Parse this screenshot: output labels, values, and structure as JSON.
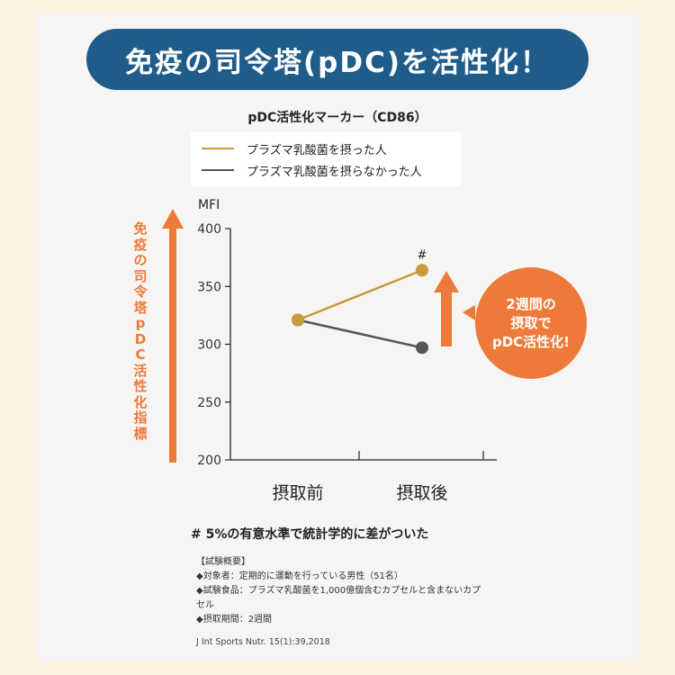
{
  "banner": {
    "title": "免疫の司令塔(pDC)を活性化！"
  },
  "chart_data": {
    "type": "line",
    "title": "pDC活性化マーカー（CD86）",
    "ylabel": "MFI",
    "ylim": [
      200,
      400
    ],
    "yticks": [
      "400",
      "350",
      "300",
      "250",
      "200"
    ],
    "categories": [
      "摂取前",
      "摂取後"
    ],
    "series": [
      {
        "name": "プラズマ乳酸菌を摂った人",
        "values": [
          321,
          364
        ],
        "color": "#c79a3c"
      },
      {
        "name": "プラズマ乳酸菌を摂らなかった人",
        "values": [
          321,
          297
        ],
        "color": "#555555"
      }
    ],
    "annotation": "#"
  },
  "left_arrow": {
    "label": "免疫の司令塔pDC活性化指標",
    "color": "#ee7a3a"
  },
  "bubble": {
    "line1": "2週間の",
    "line2": "摂取で",
    "line3": "pDC活性化!"
  },
  "note": "# 5%の有意水準で統計学的に差がついた",
  "summary": {
    "heading": "【試験概要】",
    "line1": "◆対象者：定期的に運動を行っている男性（51名）",
    "line2": "◆試験食品：プラズマ乳酸菌を1,000億個含むカプセルと含まないカプ",
    "line2b": "セル",
    "line3": "◆摂取期間：2週間"
  },
  "citation": "J Int Sports Nutr. 15(1):39,2018"
}
